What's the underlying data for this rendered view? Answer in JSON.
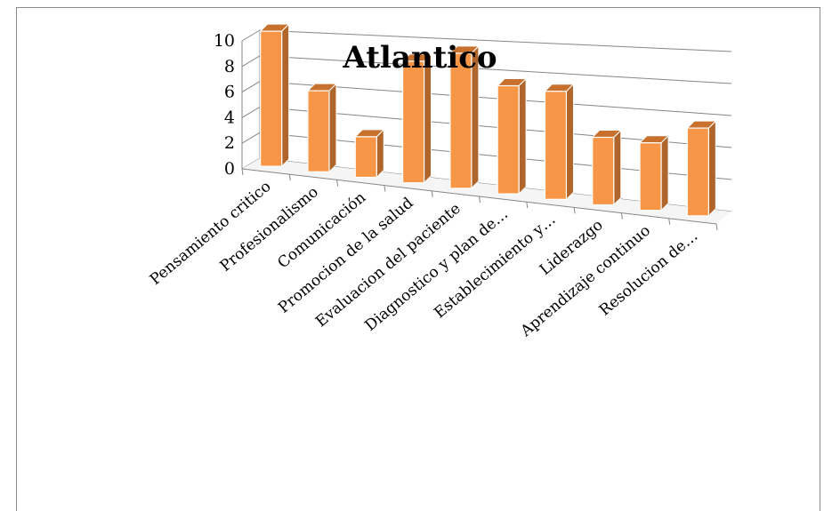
{
  "chart_data": {
    "type": "bar",
    "title": "Atlantico",
    "xlabel": "",
    "ylabel": "",
    "ylim": [
      0,
      10
    ],
    "yticks": [
      "0",
      "2",
      "4",
      "6",
      "8",
      "10"
    ],
    "categories": [
      "Pensamiento critico",
      "Profesionalismo",
      "Comunicación",
      "Promocion de la salud",
      "Evaluacion del paciente",
      "Diagnostico y plan de…",
      "Establecimiento y…",
      "Liderazgo",
      "Aprendizaje continuo",
      "Resolucion de…"
    ],
    "values": [
      10,
      6,
      3,
      9,
      10,
      8,
      8,
      5,
      5,
      6.5
    ],
    "grid": true,
    "legend": "none",
    "colors": {
      "front": "#f79646",
      "side": "#b0652b",
      "top": "#c8712f",
      "edge": "#ffffff",
      "grid": "#868686"
    }
  }
}
